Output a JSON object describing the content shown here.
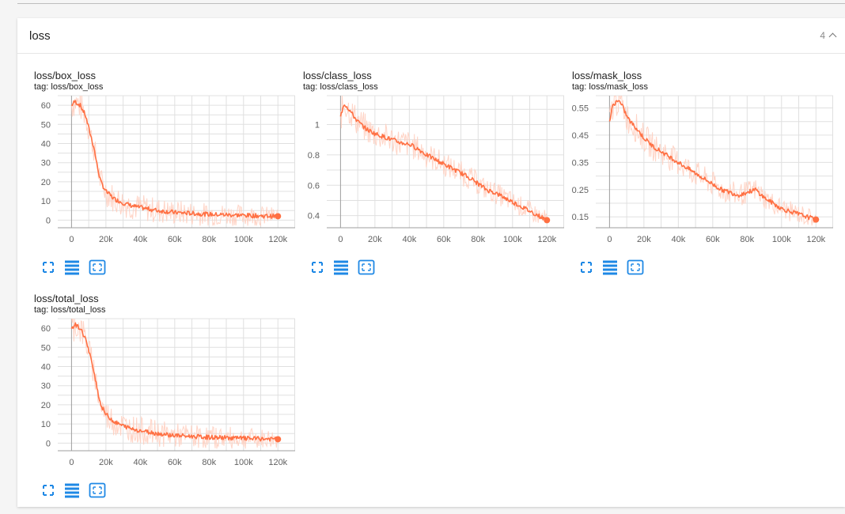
{
  "section": {
    "title": "loss",
    "count": "4"
  },
  "colors": {
    "line": "#ff7043",
    "line_light": "#ffccbc",
    "icon": "#1e88e5",
    "grid": "#e0e0e0",
    "axis": "#9e9e9e"
  },
  "icons": [
    "fit-domain-icon",
    "toggle-log-scale-icon",
    "expand-chart-icon"
  ],
  "charts": [
    {
      "title": "loss/box_loss",
      "tag": "tag: loss/box_loss"
    },
    {
      "title": "loss/class_loss",
      "tag": "tag: loss/class_loss"
    },
    {
      "title": "loss/mask_loss",
      "tag": "tag: loss/mask_loss"
    },
    {
      "title": "loss/total_loss",
      "tag": "tag: loss/total_loss"
    }
  ],
  "chart_data": [
    {
      "type": "line",
      "title": "loss/box_loss",
      "xlabel": "",
      "ylabel": "",
      "xlim": [
        -8000,
        130000
      ],
      "ylim": [
        -4,
        65
      ],
      "x_ticks": [
        0,
        20000,
        40000,
        60000,
        80000,
        100000,
        120000
      ],
      "x_tick_labels": [
        "0",
        "20k",
        "40k",
        "60k",
        "80k",
        "100k",
        "120k"
      ],
      "y_ticks": [
        0,
        10,
        20,
        30,
        40,
        50,
        60
      ],
      "y_tick_labels": [
        "0",
        "10",
        "20",
        "30",
        "40",
        "50",
        "60"
      ],
      "grid": true,
      "series": [
        {
          "x": [
            0,
            2000,
            5000,
            8000,
            10000,
            13000,
            15000,
            17000,
            20000,
            25000,
            30000,
            35000,
            40000,
            50000,
            60000,
            70000,
            80000,
            90000,
            100000,
            110000,
            120000
          ],
          "y": [
            60,
            62,
            60,
            55,
            48,
            38,
            28,
            20,
            15,
            11,
            9,
            7.5,
            6.5,
            5,
            4,
            3.5,
            3,
            2.8,
            2.5,
            2.2,
            2
          ]
        }
      ]
    },
    {
      "type": "line",
      "title": "loss/class_loss",
      "xlabel": "",
      "ylabel": "",
      "xlim": [
        -8000,
        130000
      ],
      "ylim": [
        0.32,
        1.19
      ],
      "x_ticks": [
        0,
        20000,
        40000,
        60000,
        80000,
        100000,
        120000
      ],
      "x_tick_labels": [
        "0",
        "20k",
        "40k",
        "60k",
        "80k",
        "100k",
        "120k"
      ],
      "y_ticks": [
        0.4,
        0.6,
        0.8,
        1.0
      ],
      "y_tick_labels": [
        "0.4",
        "0.6",
        "0.8",
        "1"
      ],
      "grid": true,
      "series": [
        {
          "x": [
            0,
            2000,
            5000,
            8000,
            10000,
            15000,
            20000,
            25000,
            30000,
            35000,
            40000,
            45000,
            50000,
            55000,
            60000,
            65000,
            70000,
            75000,
            80000,
            85000,
            90000,
            95000,
            100000,
            105000,
            110000,
            115000,
            120000
          ],
          "y": [
            1.05,
            1.14,
            1.1,
            1.05,
            1.02,
            0.97,
            0.94,
            0.92,
            0.9,
            0.88,
            0.87,
            0.84,
            0.8,
            0.77,
            0.74,
            0.71,
            0.68,
            0.65,
            0.61,
            0.57,
            0.55,
            0.52,
            0.49,
            0.46,
            0.43,
            0.4,
            0.37
          ]
        }
      ]
    },
    {
      "type": "line",
      "title": "loss/mask_loss",
      "xlabel": "",
      "ylabel": "",
      "xlim": [
        -8000,
        130000
      ],
      "ylim": [
        0.11,
        0.595
      ],
      "x_ticks": [
        0,
        20000,
        40000,
        60000,
        80000,
        100000,
        120000
      ],
      "x_tick_labels": [
        "0",
        "20k",
        "40k",
        "60k",
        "80k",
        "100k",
        "120k"
      ],
      "y_ticks": [
        0.15,
        0.25,
        0.35,
        0.45,
        0.55
      ],
      "y_tick_labels": [
        "0.15",
        "0.25",
        "0.35",
        "0.45",
        "0.55"
      ],
      "grid": true,
      "series": [
        {
          "x": [
            0,
            2000,
            5000,
            8000,
            10000,
            12000,
            15000,
            20000,
            25000,
            30000,
            35000,
            40000,
            45000,
            50000,
            55000,
            60000,
            65000,
            70000,
            75000,
            80000,
            85000,
            90000,
            95000,
            100000,
            105000,
            110000,
            115000,
            120000
          ],
          "y": [
            0.5,
            0.56,
            0.58,
            0.55,
            0.52,
            0.5,
            0.48,
            0.44,
            0.41,
            0.39,
            0.37,
            0.35,
            0.33,
            0.31,
            0.29,
            0.27,
            0.25,
            0.24,
            0.23,
            0.24,
            0.25,
            0.22,
            0.2,
            0.18,
            0.17,
            0.16,
            0.15,
            0.14
          ]
        }
      ]
    },
    {
      "type": "line",
      "title": "loss/total_loss",
      "xlabel": "",
      "ylabel": "",
      "xlim": [
        -8000,
        130000
      ],
      "ylim": [
        -4,
        65
      ],
      "x_ticks": [
        0,
        20000,
        40000,
        60000,
        80000,
        100000,
        120000
      ],
      "x_tick_labels": [
        "0",
        "20k",
        "40k",
        "60k",
        "80k",
        "100k",
        "120k"
      ],
      "y_ticks": [
        0,
        10,
        20,
        30,
        40,
        50,
        60
      ],
      "y_tick_labels": [
        "0",
        "10",
        "20",
        "30",
        "40",
        "50",
        "60"
      ],
      "grid": true,
      "series": [
        {
          "x": [
            0,
            2000,
            5000,
            8000,
            10000,
            13000,
            15000,
            17000,
            20000,
            25000,
            30000,
            35000,
            40000,
            50000,
            60000,
            70000,
            80000,
            90000,
            100000,
            110000,
            120000
          ],
          "y": [
            60,
            62,
            60,
            55,
            48,
            38,
            28,
            20,
            15,
            11,
            9,
            7.5,
            6.5,
            5,
            4,
            3.5,
            3,
            2.8,
            2.5,
            2.2,
            2
          ]
        }
      ]
    }
  ]
}
